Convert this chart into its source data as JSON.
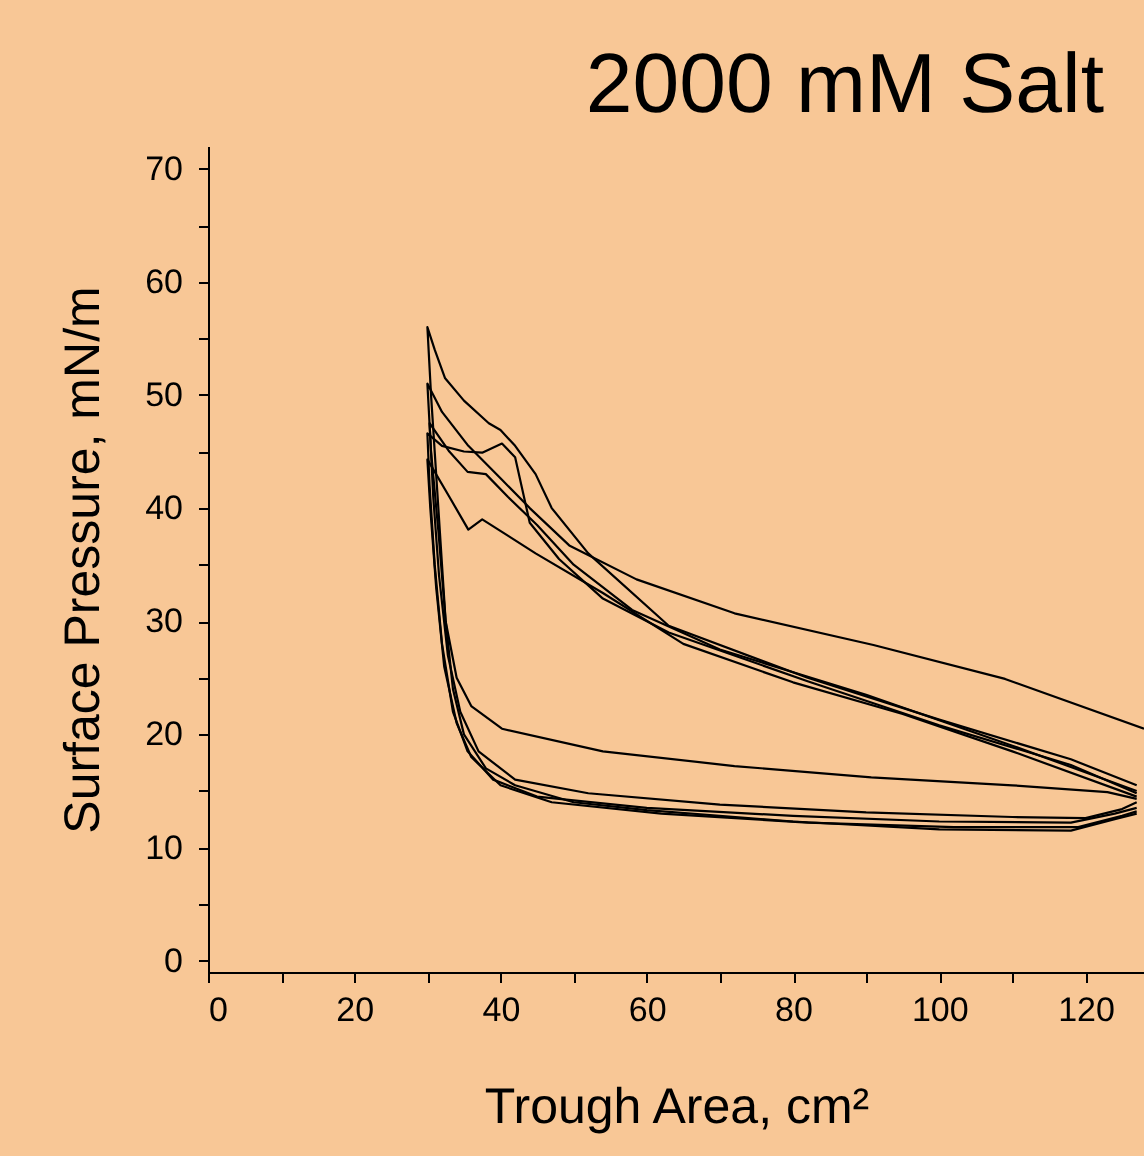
{
  "chart_data": {
    "type": "line",
    "title": "2000 mM Salt",
    "xlabel": "Trough Area, cm²",
    "ylabel": "Surface Pressure, mN/m",
    "xlim": [
      0,
      128
    ],
    "ylim": [
      -1,
      72
    ],
    "xticks": [
      0,
      {
        "value": 10,
        "label": null
      },
      20,
      {
        "value": 30,
        "label": null
      },
      40,
      {
        "value": 50,
        "label": null
      },
      60,
      {
        "value": 70,
        "label": null
      },
      80,
      {
        "value": 90,
        "label": null
      },
      100,
      {
        "value": 110,
        "label": null
      },
      120
    ],
    "yticks": [
      0,
      {
        "value": 5,
        "label": null
      },
      10,
      {
        "value": 15,
        "label": null
      },
      20,
      {
        "value": 25,
        "label": null
      },
      30,
      {
        "value": 35,
        "label": null
      },
      40,
      {
        "value": 45,
        "label": null
      },
      50,
      {
        "value": 55,
        "label": null
      },
      60,
      {
        "value": 65,
        "label": null
      },
      70
    ],
    "series": [
      {
        "color": "#000000",
        "x": [
          127,
          118,
          100,
          82,
          63,
          52,
          47,
          44.8,
          42,
          40,
          38.4,
          35,
          32.4,
          31,
          30,
          30.5,
          31.5,
          32.5,
          33.5,
          35,
          38,
          42,
          50,
          60,
          80,
          100,
          118,
          124,
          127
        ],
        "values": [
          15.5,
          17.8,
          21.3,
          25,
          29.6,
          36,
          40,
          43,
          45.5,
          46.9,
          47.5,
          49.5,
          51.5,
          54,
          56,
          50,
          40,
          30,
          24,
          20,
          17,
          15.5,
          14,
          13.3,
          12.3,
          11.6,
          11.5,
          12.5,
          13
        ]
      },
      {
        "color": "#000000",
        "x": [
          128,
          109,
          91,
          72,
          58.6,
          49.4,
          44,
          40.2,
          35.6,
          32,
          30,
          30.5,
          31.5,
          32.5,
          34,
          36,
          40.2,
          54,
          72,
          90.7,
          110,
          123,
          127
        ],
        "values": [
          20.5,
          24.9,
          27.9,
          30.7,
          33.7,
          36.7,
          40,
          42.5,
          45.5,
          48.5,
          51,
          45,
          38,
          30,
          25,
          22.5,
          20.5,
          18.5,
          17.2,
          16.2,
          15.5,
          14.9,
          14.3
        ]
      },
      {
        "color": "#000000",
        "x": [
          127,
          118,
          100,
          82,
          63,
          54,
          48,
          44,
          42,
          40.2,
          37.5,
          35,
          32,
          30,
          30.3,
          31,
          32,
          33.5,
          35.5,
          39,
          45,
          60,
          80,
          100,
          118,
          124,
          127
        ],
        "values": [
          14.8,
          17.3,
          20.8,
          24.7,
          29,
          32,
          35.5,
          38.7,
          44.5,
          45.7,
          44.9,
          45,
          45.5,
          46.6,
          42,
          35,
          28,
          22,
          18.5,
          16,
          14.5,
          13.5,
          12.8,
          12.3,
          12.2,
          13,
          13.5
        ]
      },
      {
        "color": "#000000",
        "x": [
          127,
          110,
          95,
          80,
          65,
          54,
          44.8,
          37.5,
          35.6,
          33,
          30,
          30.4,
          31.2,
          32.3,
          34,
          36,
          40,
          47,
          62,
          82,
          102,
          119,
          125,
          127
        ],
        "values": [
          14.5,
          18.5,
          21.8,
          24.6,
          28,
          32.5,
          36,
          39,
          38.1,
          41,
          44.3,
          40,
          33,
          26,
          21,
          18,
          15.5,
          14,
          13,
          12.2,
          11.8,
          11.8,
          12.8,
          13.2
        ]
      },
      {
        "color": "#000000",
        "x": [
          127,
          110,
          90,
          70,
          58,
          50,
          45,
          41,
          38,
          35.5,
          33,
          30.3,
          30.8,
          31.6,
          32.8,
          34.5,
          37,
          42,
          52,
          70,
          90,
          110,
          120,
          125,
          127
        ],
        "values": [
          15,
          19,
          23.5,
          27.5,
          31,
          35,
          38.5,
          41,
          43,
          43.2,
          45,
          47.5,
          41,
          34,
          27,
          22,
          18.5,
          16,
          14.8,
          13.8,
          13.1,
          12.7,
          12.6,
          13.4,
          14
        ]
      }
    ]
  }
}
